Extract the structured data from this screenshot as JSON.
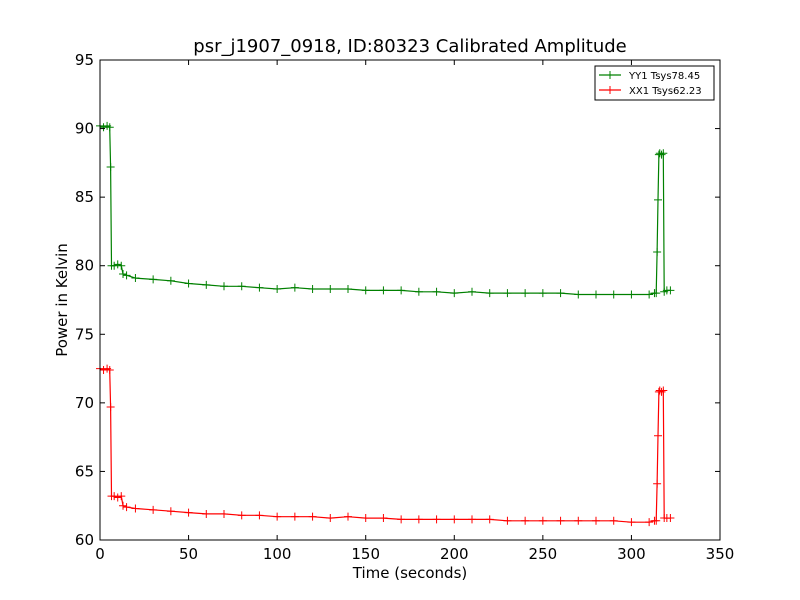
{
  "chart_data": {
    "type": "line",
    "title": "psr_j1907_0918, ID:80323 Calibrated Amplitude",
    "xlabel": "Time (seconds)",
    "ylabel": "Power in Kelvin",
    "xlim": [
      0,
      350
    ],
    "ylim": [
      60,
      95
    ],
    "xticks": [
      0,
      50,
      100,
      150,
      200,
      250,
      300,
      350
    ],
    "yticks": [
      60,
      65,
      70,
      75,
      80,
      85,
      90,
      95
    ],
    "grid": false,
    "legend_position": "top-right",
    "series": [
      {
        "name": "YY1 Tsys78.45",
        "color": "#008000",
        "marker": "+",
        "points": [
          [
            0,
            90.2
          ],
          [
            2,
            90.1
          ],
          [
            4,
            90.2
          ],
          [
            5.5,
            90.1
          ],
          [
            6,
            87.2
          ],
          [
            6.5,
            80.0
          ],
          [
            8,
            80.0
          ],
          [
            10,
            80.1
          ],
          [
            12,
            80.0
          ],
          [
            13,
            79.4
          ],
          [
            15,
            79.3
          ],
          [
            20,
            79.1
          ],
          [
            30,
            79.0
          ],
          [
            40,
            78.9
          ],
          [
            50,
            78.7
          ],
          [
            60,
            78.6
          ],
          [
            70,
            78.5
          ],
          [
            80,
            78.5
          ],
          [
            90,
            78.4
          ],
          [
            100,
            78.3
          ],
          [
            110,
            78.4
          ],
          [
            120,
            78.3
          ],
          [
            130,
            78.3
          ],
          [
            140,
            78.3
          ],
          [
            150,
            78.2
          ],
          [
            160,
            78.2
          ],
          [
            170,
            78.2
          ],
          [
            180,
            78.1
          ],
          [
            190,
            78.1
          ],
          [
            200,
            78.0
          ],
          [
            210,
            78.1
          ],
          [
            220,
            78.0
          ],
          [
            230,
            78.0
          ],
          [
            240,
            78.0
          ],
          [
            250,
            78.0
          ],
          [
            260,
            78.0
          ],
          [
            270,
            77.9
          ],
          [
            280,
            77.9
          ],
          [
            290,
            77.9
          ],
          [
            300,
            77.9
          ],
          [
            310,
            77.9
          ],
          [
            313,
            78.0
          ],
          [
            314,
            78.0
          ],
          [
            314.5,
            81.0
          ],
          [
            315,
            84.8
          ],
          [
            315.5,
            88.1
          ],
          [
            316,
            88.2
          ],
          [
            317,
            88.1
          ],
          [
            318,
            88.2
          ],
          [
            318.5,
            78.1
          ],
          [
            320,
            78.2
          ],
          [
            322,
            78.2
          ]
        ]
      },
      {
        "name": "XX1 Tsys62.23",
        "color": "#ff0000",
        "marker": "+",
        "points": [
          [
            0,
            72.5
          ],
          [
            2,
            72.4
          ],
          [
            4,
            72.5
          ],
          [
            5.5,
            72.4
          ],
          [
            6,
            69.7
          ],
          [
            6.5,
            63.2
          ],
          [
            8,
            63.2
          ],
          [
            10,
            63.1
          ],
          [
            12,
            63.2
          ],
          [
            13,
            62.5
          ],
          [
            15,
            62.4
          ],
          [
            20,
            62.3
          ],
          [
            30,
            62.2
          ],
          [
            40,
            62.1
          ],
          [
            50,
            62.0
          ],
          [
            60,
            61.9
          ],
          [
            70,
            61.9
          ],
          [
            80,
            61.8
          ],
          [
            90,
            61.8
          ],
          [
            100,
            61.7
          ],
          [
            110,
            61.7
          ],
          [
            120,
            61.7
          ],
          [
            130,
            61.6
          ],
          [
            140,
            61.7
          ],
          [
            150,
            61.6
          ],
          [
            160,
            61.6
          ],
          [
            170,
            61.5
          ],
          [
            180,
            61.5
          ],
          [
            190,
            61.5
          ],
          [
            200,
            61.5
          ],
          [
            210,
            61.5
          ],
          [
            220,
            61.5
          ],
          [
            230,
            61.4
          ],
          [
            240,
            61.4
          ],
          [
            250,
            61.4
          ],
          [
            260,
            61.4
          ],
          [
            270,
            61.4
          ],
          [
            280,
            61.4
          ],
          [
            290,
            61.4
          ],
          [
            300,
            61.3
          ],
          [
            310,
            61.3
          ],
          [
            313,
            61.4
          ],
          [
            314,
            61.4
          ],
          [
            314.5,
            64.1
          ],
          [
            315,
            67.6
          ],
          [
            315.5,
            70.8
          ],
          [
            316,
            70.9
          ],
          [
            317,
            70.8
          ],
          [
            318,
            70.9
          ],
          [
            318.5,
            61.6
          ],
          [
            320,
            61.6
          ],
          [
            322,
            61.6
          ]
        ]
      }
    ]
  }
}
